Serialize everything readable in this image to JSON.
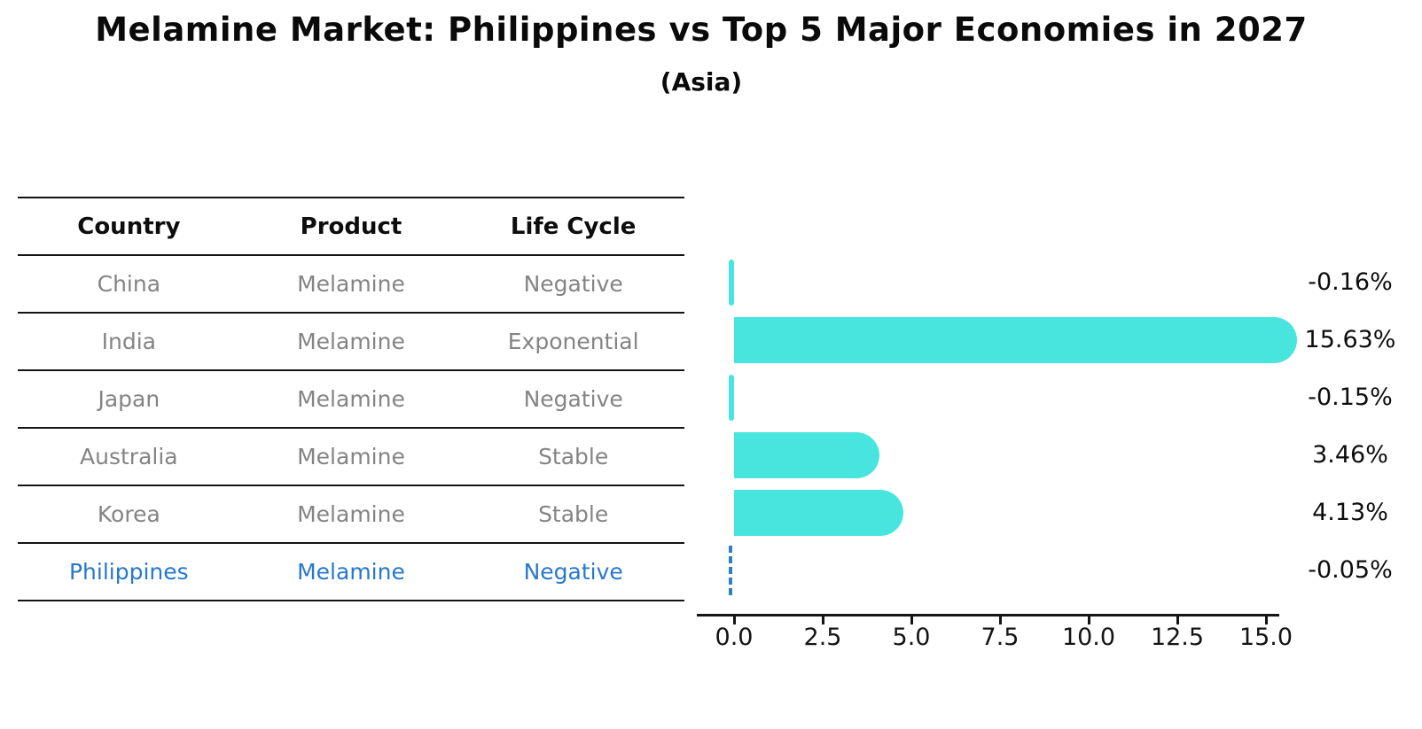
{
  "title": "Melamine Market: Philippines vs Top 5 Major Economies in 2027",
  "subtitle": "(Asia)",
  "table": {
    "headers": [
      "Country",
      "Product",
      "Life Cycle"
    ],
    "rows": [
      {
        "country": "China",
        "product": "Melamine",
        "life_cycle": "Negative",
        "highlight": false
      },
      {
        "country": "India",
        "product": "Melamine",
        "life_cycle": "Exponential",
        "highlight": false
      },
      {
        "country": "Japan",
        "product": "Melamine",
        "life_cycle": "Negative",
        "highlight": false
      },
      {
        "country": "Australia",
        "product": "Melamine",
        "life_cycle": "Stable",
        "highlight": false
      },
      {
        "country": "Korea",
        "product": "Melamine",
        "life_cycle": "Stable",
        "highlight": false
      },
      {
        "country": "Philippines",
        "product": "Melamine",
        "life_cycle": "Negative",
        "highlight": true
      }
    ]
  },
  "chart_data": {
    "type": "bar",
    "orientation": "horizontal",
    "title": "Melamine Market: Philippines vs Top 5 Major Economies in 2027",
    "subtitle": "(Asia)",
    "categories": [
      "China",
      "India",
      "Japan",
      "Australia",
      "Korea",
      "Philippines"
    ],
    "values": [
      -0.16,
      15.63,
      -0.15,
      3.46,
      4.13,
      -0.05
    ],
    "value_labels": [
      "-0.16%",
      "15.63%",
      "-0.15%",
      "3.46%",
      "4.13%",
      "-0.05%"
    ],
    "unit": "percent",
    "x_ticks": [
      "0.0",
      "2.5",
      "5.0",
      "7.5",
      "10.0",
      "12.5",
      "15.0"
    ],
    "x_tick_values": [
      0,
      2.5,
      5,
      7.5,
      10,
      12.5,
      15
    ],
    "xlim": [
      -1.0,
      16.4
    ],
    "grid": false,
    "legend": false,
    "highlight_index": 5,
    "bar_color": "#48e5df",
    "highlight_color": "#2e7ec9"
  },
  "colors": {
    "background": "#ffffff",
    "bar_cyan": "#48e5df",
    "highlight_blue": "#2878cb",
    "row_text_gray": "#848484",
    "line_black": "#141414"
  }
}
